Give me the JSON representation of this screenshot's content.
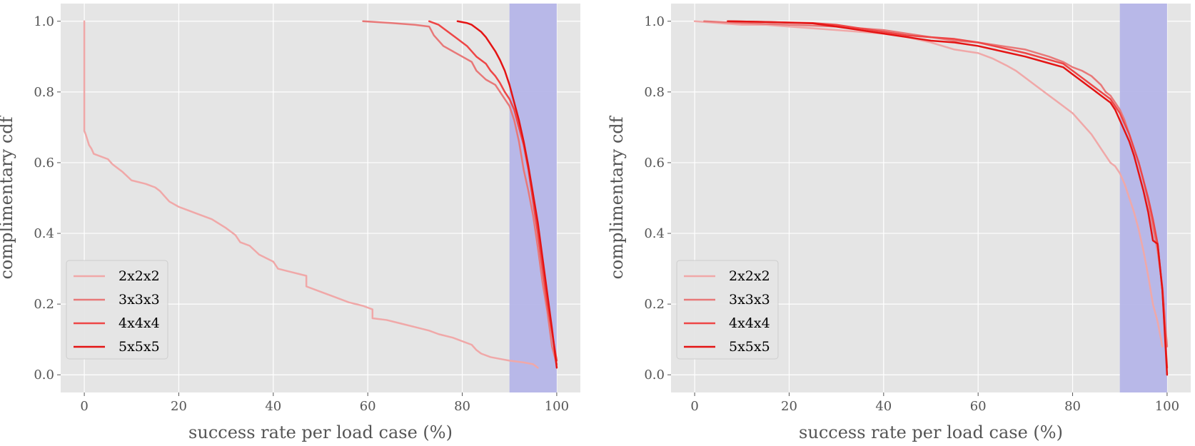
{
  "chart_data": [
    {
      "type": "line",
      "xlabel": "success rate per load case (%)",
      "ylabel": "complimentary cdf",
      "xlim": [
        -5,
        105
      ],
      "ylim": [
        -0.05,
        1.05
      ],
      "xticks": [
        0,
        20,
        40,
        60,
        80,
        100
      ],
      "yticks": [
        0.0,
        0.2,
        0.4,
        0.6,
        0.8,
        1.0
      ],
      "grid": true,
      "background": "#e5e5e5",
      "highlight_band": {
        "x0": 90,
        "x1": 100,
        "color": "#b5b5e8"
      },
      "legend": {
        "position": "lower-left"
      },
      "series": [
        {
          "name": "2x2x2",
          "color": "#f0a8a8",
          "width": 2.5,
          "x": [
            0,
            0,
            0.3,
            1,
            1.5,
            2,
            5,
            6,
            7,
            8,
            10,
            13,
            15,
            16,
            17,
            18,
            20,
            22,
            24,
            27,
            30,
            32,
            33,
            35,
            37,
            40,
            41,
            44,
            47,
            47,
            50,
            53,
            56,
            59,
            60,
            61,
            61,
            64,
            67,
            70,
            73,
            75,
            78,
            80,
            82,
            83,
            84,
            86,
            88,
            90,
            93,
            95,
            96
          ],
          "y": [
            1.0,
            0.69,
            0.68,
            0.65,
            0.64,
            0.625,
            0.61,
            0.595,
            0.585,
            0.575,
            0.55,
            0.54,
            0.53,
            0.52,
            0.505,
            0.49,
            0.475,
            0.465,
            0.455,
            0.44,
            0.415,
            0.395,
            0.375,
            0.365,
            0.34,
            0.32,
            0.3,
            0.29,
            0.28,
            0.25,
            0.235,
            0.22,
            0.205,
            0.195,
            0.19,
            0.185,
            0.16,
            0.155,
            0.145,
            0.135,
            0.125,
            0.115,
            0.105,
            0.095,
            0.085,
            0.07,
            0.06,
            0.05,
            0.045,
            0.04,
            0.035,
            0.03,
            0.02
          ]
        },
        {
          "name": "3x3x3",
          "color": "#e87878",
          "width": 2.5,
          "x": [
            59,
            65,
            70,
            73,
            74,
            76,
            78,
            80,
            82,
            83,
            85,
            87,
            88,
            89,
            90,
            91,
            92,
            93,
            94,
            95,
            96,
            97,
            98,
            99,
            100
          ],
          "y": [
            1.0,
            0.995,
            0.99,
            0.985,
            0.96,
            0.93,
            0.915,
            0.9,
            0.885,
            0.86,
            0.835,
            0.82,
            0.8,
            0.78,
            0.76,
            0.72,
            0.66,
            0.58,
            0.52,
            0.45,
            0.36,
            0.26,
            0.18,
            0.08,
            0.03
          ]
        },
        {
          "name": "4x4x4",
          "color": "#ee4646",
          "width": 2.5,
          "x": [
            73,
            75,
            77,
            79,
            81,
            83,
            85,
            86,
            87,
            88,
            89,
            90,
            91,
            92,
            93,
            94,
            95,
            96,
            97,
            98,
            99,
            100
          ],
          "y": [
            1.0,
            0.99,
            0.97,
            0.95,
            0.93,
            0.9,
            0.88,
            0.86,
            0.845,
            0.825,
            0.8,
            0.78,
            0.75,
            0.7,
            0.65,
            0.58,
            0.49,
            0.4,
            0.3,
            0.2,
            0.12,
            0.04
          ]
        },
        {
          "name": "5x5x5",
          "color": "#e41414",
          "width": 2.5,
          "x": [
            79,
            81,
            82,
            83,
            84,
            85,
            86,
            87,
            88,
            89,
            90,
            91,
            92,
            93,
            94,
            95,
            96,
            97,
            98,
            99,
            100
          ],
          "y": [
            1.0,
            0.995,
            0.99,
            0.98,
            0.97,
            0.955,
            0.935,
            0.915,
            0.89,
            0.86,
            0.82,
            0.77,
            0.72,
            0.66,
            0.59,
            0.51,
            0.43,
            0.33,
            0.23,
            0.13,
            0.02
          ]
        }
      ]
    },
    {
      "type": "line",
      "xlabel": "success rate per load case (%)",
      "ylabel": "complimentary cdf",
      "xlim": [
        -5,
        105
      ],
      "ylim": [
        -0.05,
        1.05
      ],
      "xticks": [
        0,
        20,
        40,
        60,
        80,
        100
      ],
      "yticks": [
        0.0,
        0.2,
        0.4,
        0.6,
        0.8,
        1.0
      ],
      "grid": true,
      "background": "#e5e5e5",
      "highlight_band": {
        "x0": 90,
        "x1": 100,
        "color": "#b5b5e8"
      },
      "legend": {
        "position": "lower-left"
      },
      "series": [
        {
          "name": "2x2x2",
          "color": "#f0a8a8",
          "width": 2.5,
          "x": [
            0,
            5,
            10,
            15,
            20,
            25,
            30,
            35,
            40,
            45,
            50,
            55,
            60,
            63,
            66,
            68,
            70,
            72,
            74,
            76,
            78,
            80,
            82,
            84,
            85,
            86,
            87,
            88,
            89,
            90,
            91,
            92,
            93,
            94,
            95,
            96,
            97,
            98,
            99
          ],
          "y": [
            1.0,
            0.995,
            0.99,
            0.99,
            0.985,
            0.98,
            0.975,
            0.97,
            0.965,
            0.955,
            0.94,
            0.92,
            0.91,
            0.895,
            0.875,
            0.86,
            0.84,
            0.82,
            0.8,
            0.78,
            0.76,
            0.74,
            0.71,
            0.68,
            0.66,
            0.64,
            0.62,
            0.6,
            0.59,
            0.57,
            0.54,
            0.5,
            0.46,
            0.41,
            0.35,
            0.28,
            0.2,
            0.15,
            0.08
          ]
        },
        {
          "name": "3x3x3",
          "color": "#e87878",
          "width": 2.5,
          "x": [
            2,
            10,
            20,
            30,
            35,
            40,
            45,
            50,
            55,
            60,
            65,
            70,
            75,
            78,
            80,
            82,
            84,
            86,
            87,
            88,
            89,
            90,
            91,
            92,
            93,
            94,
            95,
            96,
            97,
            98,
            99,
            100
          ],
          "y": [
            1.0,
            0.995,
            0.99,
            0.985,
            0.98,
            0.975,
            0.965,
            0.955,
            0.945,
            0.94,
            0.93,
            0.92,
            0.9,
            0.885,
            0.87,
            0.86,
            0.845,
            0.82,
            0.8,
            0.79,
            0.77,
            0.75,
            0.72,
            0.68,
            0.64,
            0.6,
            0.55,
            0.49,
            0.42,
            0.35,
            0.25,
            0.08
          ]
        },
        {
          "name": "4x4x4",
          "color": "#ee4646",
          "width": 2.5,
          "x": [
            7,
            15,
            25,
            30,
            35,
            40,
            45,
            50,
            55,
            60,
            65,
            70,
            74,
            78,
            80,
            82,
            84,
            86,
            88,
            89,
            90,
            91,
            92,
            93,
            94,
            95,
            96,
            97,
            98,
            99,
            100
          ],
          "y": [
            1.0,
            0.998,
            0.995,
            0.99,
            0.98,
            0.97,
            0.96,
            0.955,
            0.95,
            0.94,
            0.925,
            0.91,
            0.895,
            0.88,
            0.86,
            0.84,
            0.82,
            0.8,
            0.78,
            0.76,
            0.74,
            0.71,
            0.68,
            0.64,
            0.6,
            0.55,
            0.5,
            0.44,
            0.37,
            0.24,
            0.02
          ]
        },
        {
          "name": "5x5x5",
          "color": "#e41414",
          "width": 2.5,
          "x": [
            7,
            15,
            25,
            30,
            35,
            40,
            45,
            50,
            55,
            60,
            65,
            70,
            74,
            78,
            80,
            82,
            84,
            86,
            88,
            89,
            90,
            91,
            92,
            93,
            94,
            95,
            96,
            97,
            98,
            99,
            100
          ],
          "y": [
            1.0,
            0.998,
            0.994,
            0.985,
            0.975,
            0.965,
            0.955,
            0.945,
            0.94,
            0.93,
            0.915,
            0.9,
            0.885,
            0.87,
            0.85,
            0.83,
            0.81,
            0.79,
            0.77,
            0.75,
            0.72,
            0.69,
            0.66,
            0.62,
            0.57,
            0.52,
            0.46,
            0.38,
            0.37,
            0.24,
            0.0
          ]
        }
      ]
    }
  ]
}
